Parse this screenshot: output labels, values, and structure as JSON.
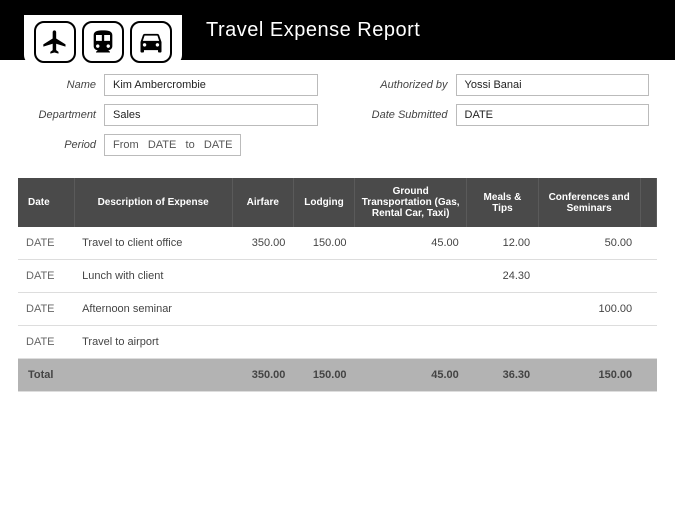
{
  "header": {
    "title": "Travel Expense Report",
    "icons": [
      "plane",
      "train",
      "car"
    ]
  },
  "form": {
    "name_label": "Name",
    "name_value": "Kim Ambercrombie",
    "department_label": "Department",
    "department_value": "Sales",
    "period_label": "Period",
    "period_from_label": "From",
    "period_from_value": "DATE",
    "period_to_label": "to",
    "period_to_value": "DATE",
    "authorized_label": "Authorized by",
    "authorized_value": "Yossi Banai",
    "submitted_label": "Date Submitted",
    "submitted_value": "DATE"
  },
  "table": {
    "headers": {
      "date": "Date",
      "desc": "Description of Expense",
      "airfare": "Airfare",
      "lodging": "Lodging",
      "ground": "Ground Transportation (Gas, Rental Car, Taxi)",
      "meals": "Meals & Tips",
      "conf": "Conferences and Seminars"
    },
    "rows": [
      {
        "date": "DATE",
        "desc": "Travel to client office",
        "airfare": "350.00",
        "lodging": "150.00",
        "ground": "45.00",
        "meals": "12.00",
        "conf": "50.00"
      },
      {
        "date": "DATE",
        "desc": "Lunch with client",
        "airfare": "",
        "lodging": "",
        "ground": "",
        "meals": "24.30",
        "conf": ""
      },
      {
        "date": "DATE",
        "desc": "Afternoon seminar",
        "airfare": "",
        "lodging": "",
        "ground": "",
        "meals": "",
        "conf": "100.00"
      },
      {
        "date": "DATE",
        "desc": "Travel to airport",
        "airfare": "",
        "lodging": "",
        "ground": "",
        "meals": "",
        "conf": ""
      }
    ],
    "total_label": "Total",
    "totals": {
      "airfare": "350.00",
      "lodging": "150.00",
      "ground": "45.00",
      "meals": "36.30",
      "conf": "150.00"
    }
  },
  "styling": {
    "header_bg": "#000000",
    "header_text": "#ffffff",
    "table_header_bg": "#4a4a4a",
    "total_row_bg": "#b3b3b3",
    "border_color": "#bbbbbb",
    "row_divider": "#dddddd"
  }
}
